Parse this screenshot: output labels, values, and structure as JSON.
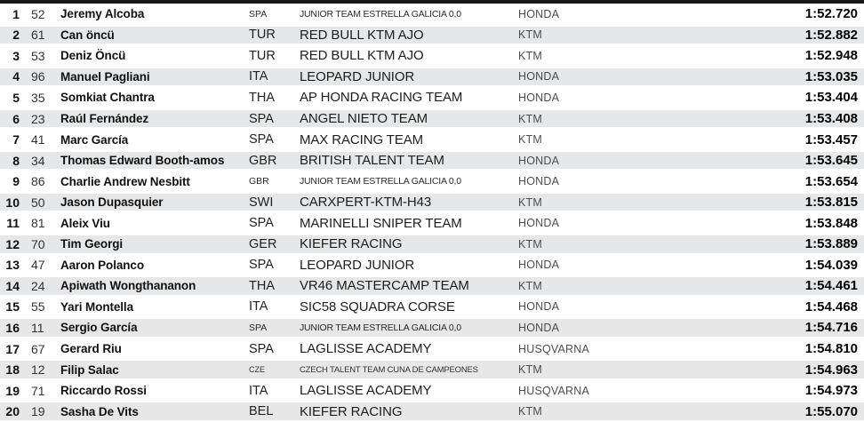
{
  "colors": {
    "top_bar": "#161616",
    "stripe": "#e6e7e8",
    "background": "#ffffff",
    "text_primary": "#101010",
    "text_secondary": "#4d4d4d"
  },
  "table": {
    "columns": [
      "position",
      "bike_number",
      "rider",
      "nation",
      "team",
      "manufacturer",
      "time"
    ],
    "rows": [
      {
        "pos": "1",
        "num": "52",
        "rider": "Jeremy Alcoba",
        "nation": "SPA",
        "team": "JUNIOR TEAM ESTRELLA GALICIA 0,0",
        "manufacturer": "HONDA",
        "time": "1:52.720",
        "size": "small"
      },
      {
        "pos": "2",
        "num": "61",
        "rider": "Can öncü",
        "nation": "TUR",
        "team": "RED BULL KTM AJO",
        "manufacturer": "KTM",
        "time": "1:52.882",
        "size": "normal"
      },
      {
        "pos": "3",
        "num": "53",
        "rider": "Deniz Öncü",
        "nation": "TUR",
        "team": "RED BULL KTM AJO",
        "manufacturer": "KTM",
        "time": "1:52.948",
        "size": "normal"
      },
      {
        "pos": "4",
        "num": "96",
        "rider": "Manuel Pagliani",
        "nation": "ITA",
        "team": "LEOPARD JUNIOR",
        "manufacturer": "HONDA",
        "time": "1:53.035",
        "size": "normal"
      },
      {
        "pos": "5",
        "num": "35",
        "rider": "Somkiat Chantra",
        "nation": "THA",
        "team": "AP HONDA RACING TEAM",
        "manufacturer": "HONDA",
        "time": "1:53.404",
        "size": "normal"
      },
      {
        "pos": "6",
        "num": "23",
        "rider": "Raúl Fernández",
        "nation": "SPA",
        "team": "ANGEL NIETO TEAM",
        "manufacturer": "KTM",
        "time": "1:53.408",
        "size": "normal"
      },
      {
        "pos": "7",
        "num": "41",
        "rider": "Marc García",
        "nation": "SPA",
        "team": "MAX RACING TEAM",
        "manufacturer": "KTM",
        "time": "1:53.457",
        "size": "normal"
      },
      {
        "pos": "8",
        "num": "34",
        "rider": "Thomas Edward Booth-amos",
        "nation": "GBR",
        "team": "BRITISH TALENT TEAM",
        "manufacturer": "HONDA",
        "time": "1:53.645",
        "size": "normal"
      },
      {
        "pos": "9",
        "num": "86",
        "rider": "Charlie Andrew Nesbitt",
        "nation": "GBR",
        "team": "JUNIOR TEAM ESTRELLA GALICIA 0,0",
        "manufacturer": "HONDA",
        "time": "1:53.654",
        "size": "small"
      },
      {
        "pos": "10",
        "num": "50",
        "rider": "Jason Dupasquier",
        "nation": "SWI",
        "team": "CARXPERT-KTM-H43",
        "manufacturer": "KTM",
        "time": "1:53.815",
        "size": "normal"
      },
      {
        "pos": "11",
        "num": "81",
        "rider": "Aleix Viu",
        "nation": "SPA",
        "team": "MARINELLI SNIPER TEAM",
        "manufacturer": "HONDA",
        "time": "1:53.848",
        "size": "normal"
      },
      {
        "pos": "12",
        "num": "70",
        "rider": "Tim Georgi",
        "nation": "GER",
        "team": "KIEFER RACING",
        "manufacturer": "KTM",
        "time": "1:53.889",
        "size": "normal"
      },
      {
        "pos": "13",
        "num": "47",
        "rider": "Aaron Polanco",
        "nation": "SPA",
        "team": "LEOPARD JUNIOR",
        "manufacturer": "HONDA",
        "time": "1:54.039",
        "size": "normal"
      },
      {
        "pos": "14",
        "num": "24",
        "rider": "Apiwath Wongthananon",
        "nation": "THA",
        "team": "VR46 MASTERCAMP TEAM",
        "manufacturer": "KTM",
        "time": "1:54.461",
        "size": "normal"
      },
      {
        "pos": "15",
        "num": "55",
        "rider": "Yari Montella",
        "nation": "ITA",
        "team": "SIC58 SQUADRA CORSE",
        "manufacturer": "HONDA",
        "time": "1:54.468",
        "size": "normal"
      },
      {
        "pos": "16",
        "num": "11",
        "rider": "Sergio García",
        "nation": "SPA",
        "team": "JUNIOR TEAM ESTRELLA GALICIA 0,0",
        "manufacturer": "HONDA",
        "time": "1:54.716",
        "size": "small"
      },
      {
        "pos": "17",
        "num": "67",
        "rider": "Gerard Riu",
        "nation": "SPA",
        "team": "LAGLISSE ACADEMY",
        "manufacturer": "HUSQVARNA",
        "time": "1:54.810",
        "size": "normal"
      },
      {
        "pos": "18",
        "num": "12",
        "rider": "Filip Salac",
        "nation": "CZE",
        "team": "CZECH TALENT TEAM CUNA DE CAMPEONES",
        "manufacturer": "KTM",
        "time": "1:54.963",
        "size": "xsmall"
      },
      {
        "pos": "19",
        "num": "71",
        "rider": "Riccardo Rossi",
        "nation": "ITA",
        "team": "LAGLISSE ACADEMY",
        "manufacturer": "HUSQVARNA",
        "time": "1:54.973",
        "size": "normal"
      },
      {
        "pos": "20",
        "num": "19",
        "rider": "Sasha De Vits",
        "nation": "BEL",
        "team": "KIEFER RACING",
        "manufacturer": "KTM",
        "time": "1:55.070",
        "size": "normal"
      }
    ]
  }
}
